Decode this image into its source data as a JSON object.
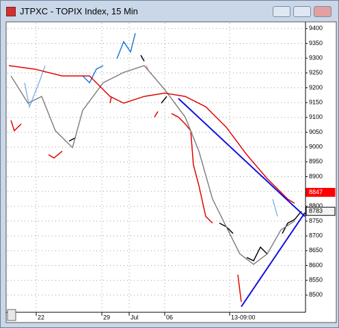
{
  "window": {
    "title": "JTPXC - TOPIX Index, 15 Min"
  },
  "chart_data": {
    "type": "line",
    "xlim": [
      0,
      436
    ],
    "ylim": [
      8442,
      9418
    ],
    "yticks": [
      8500,
      8550,
      8600,
      8650,
      8700,
      8750,
      8800,
      8850,
      8900,
      8950,
      9000,
      9050,
      9100,
      9150,
      9200,
      9250,
      9300,
      9350,
      9400
    ],
    "xticks": [
      {
        "value": 42,
        "label": "22"
      },
      {
        "value": 138,
        "label": "29"
      },
      {
        "value": 178,
        "label": "Jul"
      },
      {
        "value": 230,
        "label": "06"
      },
      {
        "value": 325,
        "label": "13-09:00"
      }
    ],
    "grid": true,
    "series": [
      {
        "color": "#e00000",
        "x": [
          5,
          10,
          20
        ],
        "values": [
          9090,
          9055,
          9078
        ]
      },
      {
        "color": "#8ab4e8",
        "x": [
          25,
          32,
          40,
          48,
          55
        ],
        "values": [
          9217,
          9136,
          9182,
          9229,
          9275
        ]
      },
      {
        "color": "#e00000",
        "x": [
          60,
          68,
          80
        ],
        "values": [
          8974,
          8963,
          8986
        ]
      },
      {
        "color": "#000000",
        "x": [
          90,
          100
        ],
        "values": [
          9020,
          9032
        ]
      },
      {
        "color": "#1e78d8",
        "x": [
          110,
          120,
          130,
          140
        ],
        "values": [
          9240,
          9217,
          9263,
          9275
        ]
      },
      {
        "color": "#e00000",
        "x": [
          150,
          152
        ],
        "values": [
          9148,
          9170
        ]
      },
      {
        "color": "#1e78d8",
        "x": [
          160,
          170,
          180,
          187
        ],
        "values": [
          9298,
          9356,
          9321,
          9384
        ]
      },
      {
        "color": "#000000",
        "x": [
          195,
          200
        ],
        "values": [
          9310,
          9290
        ]
      },
      {
        "color": "#e090e0",
        "x": [
          203,
          206
        ],
        "values": [
          9275,
          9260
        ]
      },
      {
        "color": "#e00000",
        "x": [
          215,
          220
        ],
        "values": [
          9101,
          9120
        ]
      },
      {
        "color": "#000000",
        "x": [
          225,
          233
        ],
        "values": [
          9148,
          9171
        ]
      },
      {
        "color": "#e00000",
        "x": [
          240,
          250,
          260,
          268,
          272,
          280,
          290,
          300
        ],
        "values": [
          9113,
          9101,
          9078,
          9055,
          8940,
          8870,
          8766,
          8743
        ]
      },
      {
        "color": "#000000",
        "x": [
          310,
          320,
          330
        ],
        "values": [
          8743,
          8731,
          8708
        ]
      },
      {
        "color": "#e00000",
        "x": [
          337,
          342
        ],
        "values": [
          8569,
          8477
        ]
      },
      {
        "color": "#000000",
        "x": [
          350,
          360,
          370,
          380
        ],
        "values": [
          8627,
          8616,
          8662,
          8639
        ]
      },
      {
        "color": "#8ab4e8",
        "x": [
          388,
          395
        ],
        "values": [
          8824,
          8766
        ]
      },
      {
        "color": "#000000",
        "x": [
          402,
          410,
          420,
          430
        ],
        "values": [
          8708,
          8743,
          8755,
          8783
        ]
      },
      {
        "color": "#808080",
        "x": [
          5,
          30,
          50,
          70,
          95,
          110,
          140,
          170,
          200,
          230,
          260,
          280,
          300,
          320,
          340,
          360,
          380,
          400,
          420
        ],
        "values": [
          9240,
          9148,
          9171,
          9055,
          8998,
          9124,
          9217,
          9252,
          9275,
          9194,
          9101,
          8986,
          8824,
          8731,
          8639,
          8604,
          8639,
          8720,
          8750
        ]
      },
      {
        "color": "#e00000",
        "x": [
          2,
          40,
          80,
          120,
          150,
          170,
          200,
          230,
          260,
          290,
          320,
          350,
          380,
          410,
          420
        ],
        "values": [
          9275,
          9263,
          9240,
          9240,
          9171,
          9148,
          9171,
          9182,
          9171,
          9136,
          9067,
          8974,
          8893,
          8824,
          8810
        ]
      },
      {
        "color": "#1010e0",
        "x": [
          250,
          435
        ],
        "values": [
          9164,
          8766
        ]
      },
      {
        "color": "#1010e0",
        "x": [
          342,
          435
        ],
        "values": [
          8461,
          8778
        ]
      }
    ],
    "price_markers": [
      {
        "value": 8847,
        "color": "#ff0000"
      },
      {
        "value": 8783,
        "color": "#000000"
      }
    ]
  }
}
